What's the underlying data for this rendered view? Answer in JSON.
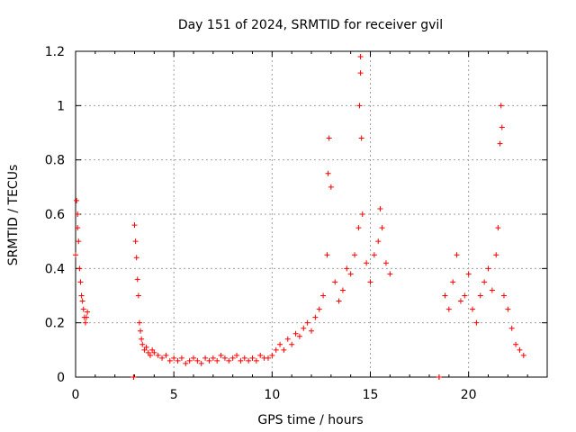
{
  "chart_data": {
    "type": "scatter",
    "title": "Day 151 of 2024, SRMTID for receiver gvil",
    "xlabel": "GPS time / hours",
    "ylabel": "SRMTID / TECUs",
    "xlim": [
      0,
      24
    ],
    "ylim": [
      0,
      1.2
    ],
    "xticks": [
      0,
      5,
      10,
      15,
      20
    ],
    "yticks": [
      0,
      0.2,
      0.4,
      0.6,
      0.8,
      1,
      1.2
    ],
    "xtick_labels": [
      "0",
      "5",
      "10",
      "15",
      "20"
    ],
    "ytick_labels": [
      "0",
      "0.2",
      "0.4",
      "0.6",
      "0.8",
      "1",
      "1.2"
    ],
    "grid": true,
    "marker": "+",
    "color": "#ff0000",
    "series": [
      {
        "name": "SRMTID",
        "x": [
          0.0,
          0.05,
          0.1,
          0.1,
          0.15,
          0.2,
          0.25,
          0.3,
          0.35,
          0.4,
          0.45,
          0.5,
          0.55,
          0.6,
          2.95,
          2.95,
          3.0,
          3.05,
          3.1,
          3.15,
          3.2,
          3.25,
          3.3,
          3.35,
          3.4,
          3.5,
          3.6,
          3.7,
          3.8,
          3.9,
          4.0,
          4.2,
          4.4,
          4.6,
          4.8,
          5.0,
          5.2,
          5.4,
          5.6,
          5.8,
          6.0,
          6.2,
          6.4,
          6.6,
          6.8,
          7.0,
          7.2,
          7.4,
          7.6,
          7.8,
          8.0,
          8.2,
          8.4,
          8.6,
          8.8,
          9.0,
          9.2,
          9.4,
          9.6,
          9.8,
          10.0,
          10.2,
          10.4,
          10.6,
          10.8,
          11.0,
          11.2,
          11.4,
          11.6,
          11.8,
          12.0,
          12.2,
          12.4,
          12.6,
          12.8,
          12.85,
          12.9,
          13.0,
          13.2,
          13.4,
          13.6,
          13.8,
          14.0,
          14.2,
          14.4,
          14.45,
          14.5,
          14.5,
          14.55,
          14.6,
          14.8,
          15.0,
          15.2,
          15.4,
          15.5,
          15.6,
          15.8,
          16.0,
          18.5,
          18.5,
          18.8,
          19.0,
          19.2,
          19.4,
          19.6,
          19.8,
          20.0,
          20.2,
          20.4,
          20.6,
          20.8,
          21.0,
          21.2,
          21.4,
          21.5,
          21.6,
          21.65,
          21.7,
          21.8,
          22.0,
          22.2,
          22.4,
          22.6,
          22.8
        ],
        "y": [
          0.45,
          0.65,
          0.55,
          0.6,
          0.5,
          0.4,
          0.35,
          0.3,
          0.28,
          0.25,
          0.22,
          0.2,
          0.22,
          0.24,
          0.0,
          0.0,
          0.56,
          0.5,
          0.44,
          0.36,
          0.3,
          0.2,
          0.17,
          0.14,
          0.12,
          0.1,
          0.11,
          0.09,
          0.08,
          0.1,
          0.09,
          0.08,
          0.07,
          0.08,
          0.06,
          0.07,
          0.06,
          0.07,
          0.05,
          0.06,
          0.07,
          0.06,
          0.05,
          0.07,
          0.06,
          0.07,
          0.06,
          0.08,
          0.07,
          0.06,
          0.07,
          0.08,
          0.06,
          0.07,
          0.06,
          0.07,
          0.06,
          0.08,
          0.07,
          0.07,
          0.08,
          0.1,
          0.12,
          0.1,
          0.14,
          0.12,
          0.16,
          0.15,
          0.18,
          0.2,
          0.17,
          0.22,
          0.25,
          0.3,
          0.45,
          0.75,
          0.88,
          0.7,
          0.35,
          0.28,
          0.32,
          0.4,
          0.38,
          0.45,
          0.55,
          1.0,
          1.18,
          1.12,
          0.88,
          0.6,
          0.42,
          0.35,
          0.45,
          0.5,
          0.62,
          0.55,
          0.42,
          0.38,
          0.0,
          0.0,
          0.3,
          0.25,
          0.35,
          0.45,
          0.28,
          0.3,
          0.38,
          0.25,
          0.2,
          0.3,
          0.35,
          0.4,
          0.32,
          0.45,
          0.55,
          0.86,
          1.0,
          0.92,
          0.3,
          0.25,
          0.18,
          0.12,
          0.1,
          0.08
        ]
      }
    ]
  }
}
